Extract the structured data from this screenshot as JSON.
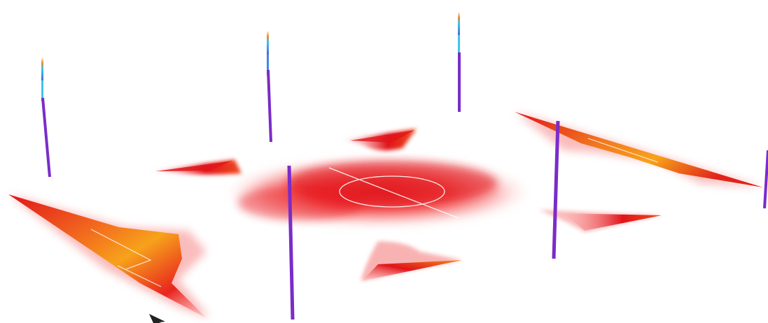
{
  "scene": {
    "colors": {
      "background": "#ffffff",
      "heat_core": "#e0141a",
      "heat_mid": "#f23a2e",
      "heat_warm": "#f7a21b",
      "heat_fade": "#ffd9d6",
      "pole": "#7a2cc9",
      "pole_top_cyan": "#3fc6e8",
      "pole_top_orange": "#f08a24",
      "pitch_lines": "#ffffff",
      "cursor": "#222222"
    },
    "icons": {
      "cursor": "mouse-pointer-icon"
    }
  }
}
